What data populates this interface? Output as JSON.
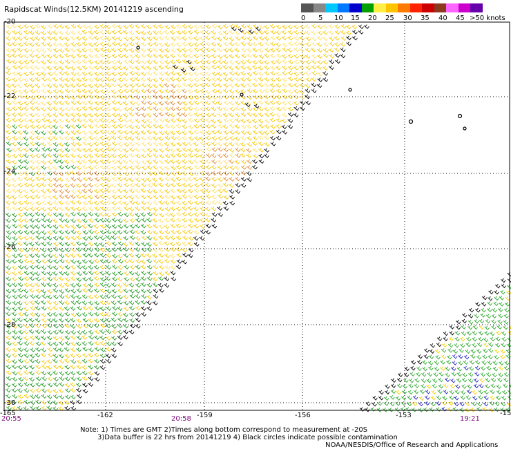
{
  "title": "Rapidscat Winds(12.5KM) 20141219 ascending",
  "legend": {
    "labels": [
      "0",
      "5",
      "10",
      "15",
      "20",
      "25",
      "30",
      "35",
      "40",
      "45",
      ">50 knots"
    ],
    "colors": [
      "#555555",
      "#888888",
      "#00c8ff",
      "#0078ff",
      "#0000cc",
      "#00a000",
      "#ffee44",
      "#ffc400",
      "#ff7a00",
      "#ff2200",
      "#cc0000",
      "#8b3a1e",
      "#ff66ff",
      "#cc00cc",
      "#6600aa"
    ]
  },
  "lat_labels": [
    "-20",
    "-22",
    "-24",
    "-26",
    "-28",
    "-30"
  ],
  "lon_labels": [
    "-165",
    "-162",
    "-159",
    "-156",
    "-153",
    "-15"
  ],
  "times": [
    "20:55",
    "20:58",
    "19:21"
  ],
  "notes": [
    "Note: 1) Times are GMT 2)Times along bottom correspond to measurement at -20S",
    "3)Data buffer is 22 hrs from 20141219 4) Black circles indicate possible contamination",
    "NOAA/NESDIS/Office of Research and Applications"
  ]
}
